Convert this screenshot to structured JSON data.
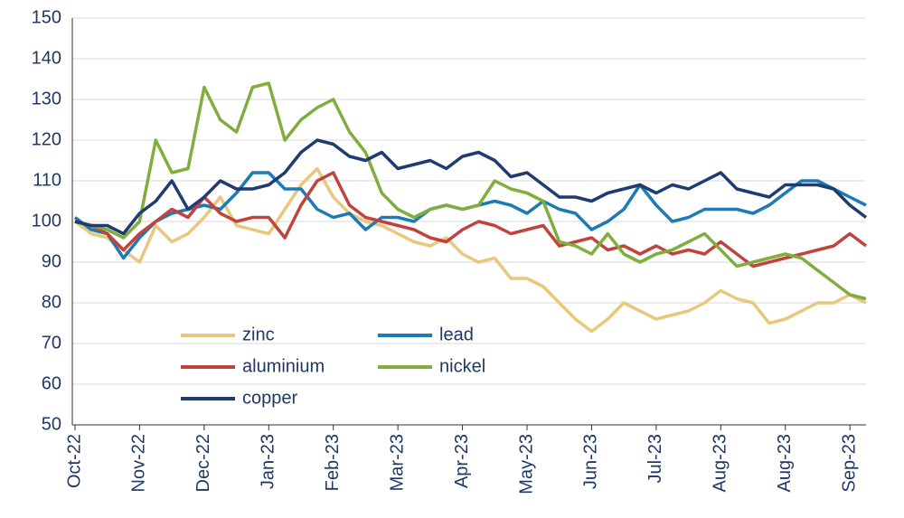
{
  "chart_data": {
    "type": "line",
    "categories": [
      "Oct-22",
      null,
      null,
      null,
      "Nov-22",
      null,
      null,
      null,
      "Dec-22",
      null,
      null,
      null,
      "Jan-23",
      null,
      null,
      null,
      "Feb-23",
      null,
      null,
      null,
      "Mar-23",
      null,
      null,
      null,
      "Apr-23",
      null,
      null,
      null,
      "May-23",
      null,
      null,
      null,
      "Jun-23",
      null,
      null,
      null,
      "Jul-23",
      null,
      null,
      null,
      "Aug-23",
      null,
      null,
      null,
      "Aug-23",
      null,
      null,
      null,
      "Sep-23",
      null
    ],
    "series": [
      {
        "name": "zinc",
        "color": "#e9c77d",
        "values": [
          100,
          97,
          96,
          93,
          90,
          99,
          95,
          97,
          101,
          106,
          99,
          98,
          97,
          103,
          109,
          113,
          106,
          102,
          100,
          99,
          97,
          95,
          94,
          96,
          92,
          90,
          91,
          86,
          86,
          84,
          80,
          76,
          73,
          76,
          80,
          78,
          76,
          77,
          78,
          80,
          83,
          81,
          80,
          75,
          76,
          78,
          80,
          80,
          82,
          80
        ]
      },
      {
        "name": "lead",
        "color": "#1d7ab5",
        "values": [
          101,
          98,
          97,
          91,
          96,
          100,
          102,
          103,
          104,
          103,
          107,
          112,
          112,
          108,
          108,
          103,
          101,
          102,
          98,
          101,
          101,
          100,
          103,
          104,
          103,
          104,
          105,
          104,
          102,
          105,
          103,
          102,
          98,
          100,
          103,
          109,
          104,
          100,
          101,
          103,
          103,
          103,
          102,
          104,
          107,
          110,
          110,
          108,
          106,
          104
        ]
      },
      {
        "name": "aluminium",
        "color": "#c0433d",
        "values": [
          100,
          99,
          97,
          93,
          97,
          100,
          103,
          101,
          106,
          102,
          100,
          101,
          101,
          96,
          104,
          110,
          112,
          104,
          101,
          100,
          99,
          98,
          96,
          95,
          98,
          100,
          99,
          97,
          98,
          99,
          94,
          95,
          96,
          93,
          94,
          92,
          94,
          92,
          93,
          92,
          95,
          92,
          89,
          90,
          91,
          92,
          93,
          94,
          97,
          94
        ]
      },
      {
        "name": "nickel",
        "color": "#7fae3e",
        "values": [
          100,
          99,
          98,
          96,
          100,
          120,
          112,
          113,
          133,
          125,
          122,
          133,
          134,
          120,
          125,
          128,
          130,
          122,
          117,
          107,
          103,
          101,
          103,
          104,
          103,
          104,
          110,
          108,
          107,
          105,
          95,
          94,
          92,
          97,
          92,
          90,
          92,
          93,
          95,
          97,
          93,
          89,
          90,
          91,
          92,
          91,
          88,
          85,
          82,
          81
        ]
      },
      {
        "name": "copper",
        "color": "#1f3b70",
        "values": [
          100,
          99,
          99,
          97,
          102,
          105,
          110,
          103,
          106,
          110,
          108,
          108,
          109,
          112,
          117,
          120,
          119,
          116,
          115,
          117,
          113,
          114,
          115,
          113,
          116,
          117,
          115,
          111,
          112,
          109,
          106,
          106,
          105,
          107,
          108,
          109,
          107,
          109,
          108,
          110,
          112,
          108,
          107,
          106,
          109,
          109,
          109,
          108,
          104,
          101
        ]
      }
    ],
    "ylim": [
      50,
      150
    ],
    "yticks": [
      50,
      60,
      70,
      80,
      90,
      100,
      110,
      120,
      130,
      140,
      150
    ],
    "grid": true
  }
}
